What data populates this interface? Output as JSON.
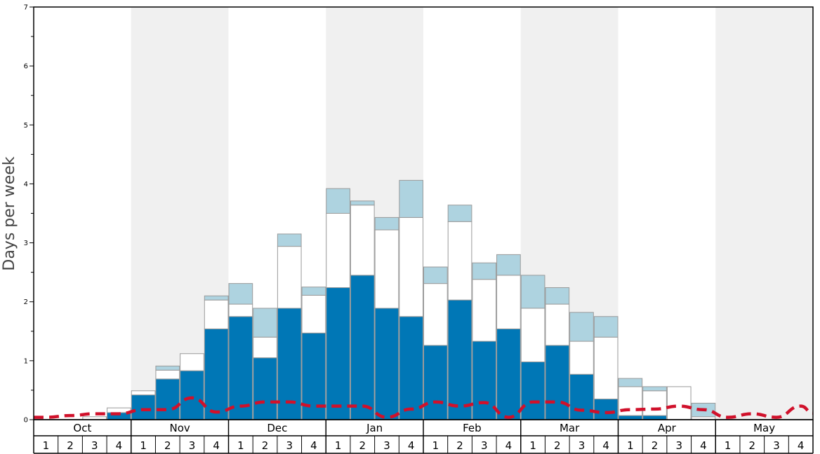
{
  "chart_data": {
    "type": "bar",
    "ylabel": "Days per week",
    "ylim": [
      0,
      7
    ],
    "yticks": [
      "0",
      "1",
      "2",
      "3",
      "4",
      "5",
      "6",
      "7"
    ],
    "months": [
      "Oct",
      "Nov",
      "Dec",
      "Jan",
      "Feb",
      "Mar",
      "Apr",
      "May"
    ],
    "weeks": [
      "1",
      "2",
      "3",
      "4"
    ],
    "stacked": true,
    "categories": [
      "Oct 1",
      "Oct 2",
      "Oct 3",
      "Oct 4",
      "Nov 1",
      "Nov 2",
      "Nov 3",
      "Nov 4",
      "Dec 1",
      "Dec 2",
      "Dec 3",
      "Dec 4",
      "Jan 1",
      "Jan 2",
      "Jan 3",
      "Jan 4",
      "Feb 1",
      "Feb 2",
      "Feb 3",
      "Feb 4",
      "Mar 1",
      "Mar 2",
      "Mar 3",
      "Mar 4",
      "Apr 1",
      "Apr 2",
      "Apr 3",
      "Apr 4",
      "May 1",
      "May 2",
      "May 3",
      "May 4"
    ],
    "series": [
      {
        "color": "#0077b6",
        "values": [
          0,
          0,
          0,
          0.12,
          0.42,
          0.69,
          0.83,
          1.54,
          1.75,
          1.05,
          1.89,
          1.47,
          2.24,
          2.45,
          1.89,
          1.75,
          1.26,
          2.03,
          1.33,
          1.54,
          0.98,
          1.26,
          0.77,
          0.35,
          0.07,
          0.07,
          0,
          0,
          0,
          0,
          0,
          0
        ]
      },
      {
        "color": "#ffffff",
        "values": [
          0,
          0,
          0.05,
          0.08,
          0.07,
          0.15,
          0.29,
          0.49,
          0.21,
          0.35,
          1.05,
          0.64,
          1.26,
          1.19,
          1.33,
          1.68,
          1.05,
          1.33,
          1.05,
          0.91,
          0.91,
          0.7,
          0.56,
          1.05,
          0.49,
          0.42,
          0.56,
          0.05,
          0,
          0,
          0,
          0
        ]
      },
      {
        "color": "#aed3e0",
        "values": [
          0,
          0,
          0,
          0,
          0,
          0.07,
          0,
          0.07,
          0.35,
          0.49,
          0.21,
          0.14,
          0.42,
          0.07,
          0.21,
          0.63,
          0.28,
          0.28,
          0.28,
          0.35,
          0.56,
          0.28,
          0.49,
          0.35,
          0.14,
          0.07,
          0,
          0.23,
          0,
          0,
          0,
          0
        ]
      }
    ],
    "average": {
      "color": "#d0112b",
      "style": "dashed",
      "values": [
        0.04,
        0.07,
        0.1,
        0.1,
        0.17,
        0.17,
        0.37,
        0.13,
        0.23,
        0.3,
        0.3,
        0.23,
        0.23,
        0.23,
        0.04,
        0.18,
        0.3,
        0.23,
        0.29,
        0.04,
        0.3,
        0.3,
        0.16,
        0.12,
        0.17,
        0.18,
        0.23,
        0.17,
        0.04,
        0.1,
        0.04,
        0.23
      ]
    },
    "grid": false,
    "legend": "none"
  }
}
